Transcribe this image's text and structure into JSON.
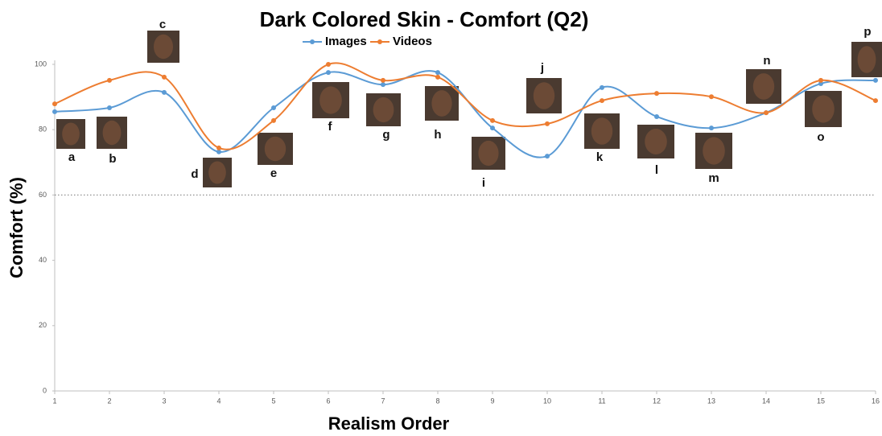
{
  "chart_data": {
    "type": "line",
    "title": "Dark Colored Skin - Comfort (Q2)",
    "x_label": "Realism Order",
    "y_label": "Comfort (%)",
    "x": [
      1,
      2,
      3,
      4,
      5,
      6,
      7,
      8,
      9,
      10,
      11,
      12,
      13,
      14,
      15,
      16
    ],
    "xlim": [
      1,
      16
    ],
    "xticks": [
      1,
      2,
      3,
      4,
      5,
      6,
      7,
      8,
      9,
      10,
      11,
      12,
      13,
      14,
      15,
      16
    ],
    "ylim": [
      0,
      100
    ],
    "yticks": [
      0,
      20,
      40,
      60,
      80,
      100
    ],
    "reference_line": 60,
    "point_labels": [
      "a",
      "b",
      "c",
      "d",
      "e",
      "f",
      "g",
      "h",
      "i",
      "j",
      "k",
      "l",
      "m",
      "n",
      "o",
      "p"
    ],
    "series": [
      {
        "name": "Images",
        "color": "#5b9bd5",
        "values": [
          85.5,
          86.7,
          91.4,
          73.2,
          86.7,
          97.5,
          93.8,
          97.5,
          80.5,
          71.9,
          92.9,
          84.0,
          80.5,
          85.2,
          94.1,
          95.1
        ]
      },
      {
        "name": "Videos",
        "color": "#ed7d31",
        "values": [
          87.9,
          95.1,
          96.1,
          74.4,
          82.8,
          100,
          95.1,
          96.1,
          82.8,
          81.8,
          88.9,
          91.1,
          90.1,
          85.2,
          95.1,
          88.9
        ]
      }
    ],
    "legend": "top",
    "smooth": true
  }
}
